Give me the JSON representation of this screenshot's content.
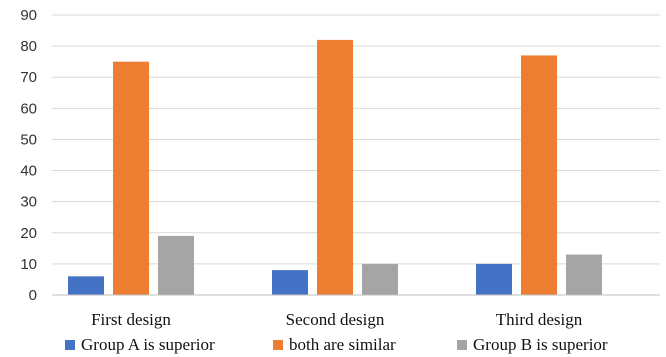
{
  "chart_data": {
    "type": "bar",
    "title": "",
    "xlabel": "",
    "ylabel": "",
    "ylim": [
      0,
      90
    ],
    "yticks": [
      0,
      10,
      20,
      30,
      40,
      50,
      60,
      70,
      80,
      90
    ],
    "grid": true,
    "legend_position": "bottom",
    "categories": [
      "First design",
      "Second design",
      "Third design"
    ],
    "series": [
      {
        "name": "Group A is superior",
        "color": "#4472c4",
        "values": [
          6,
          8,
          10
        ]
      },
      {
        "name": "both are similar",
        "color": "#ed7d31",
        "values": [
          75,
          82,
          77
        ]
      },
      {
        "name": "Group B is superior",
        "color": "#a5a5a5",
        "values": [
          19,
          10,
          13
        ]
      }
    ]
  }
}
